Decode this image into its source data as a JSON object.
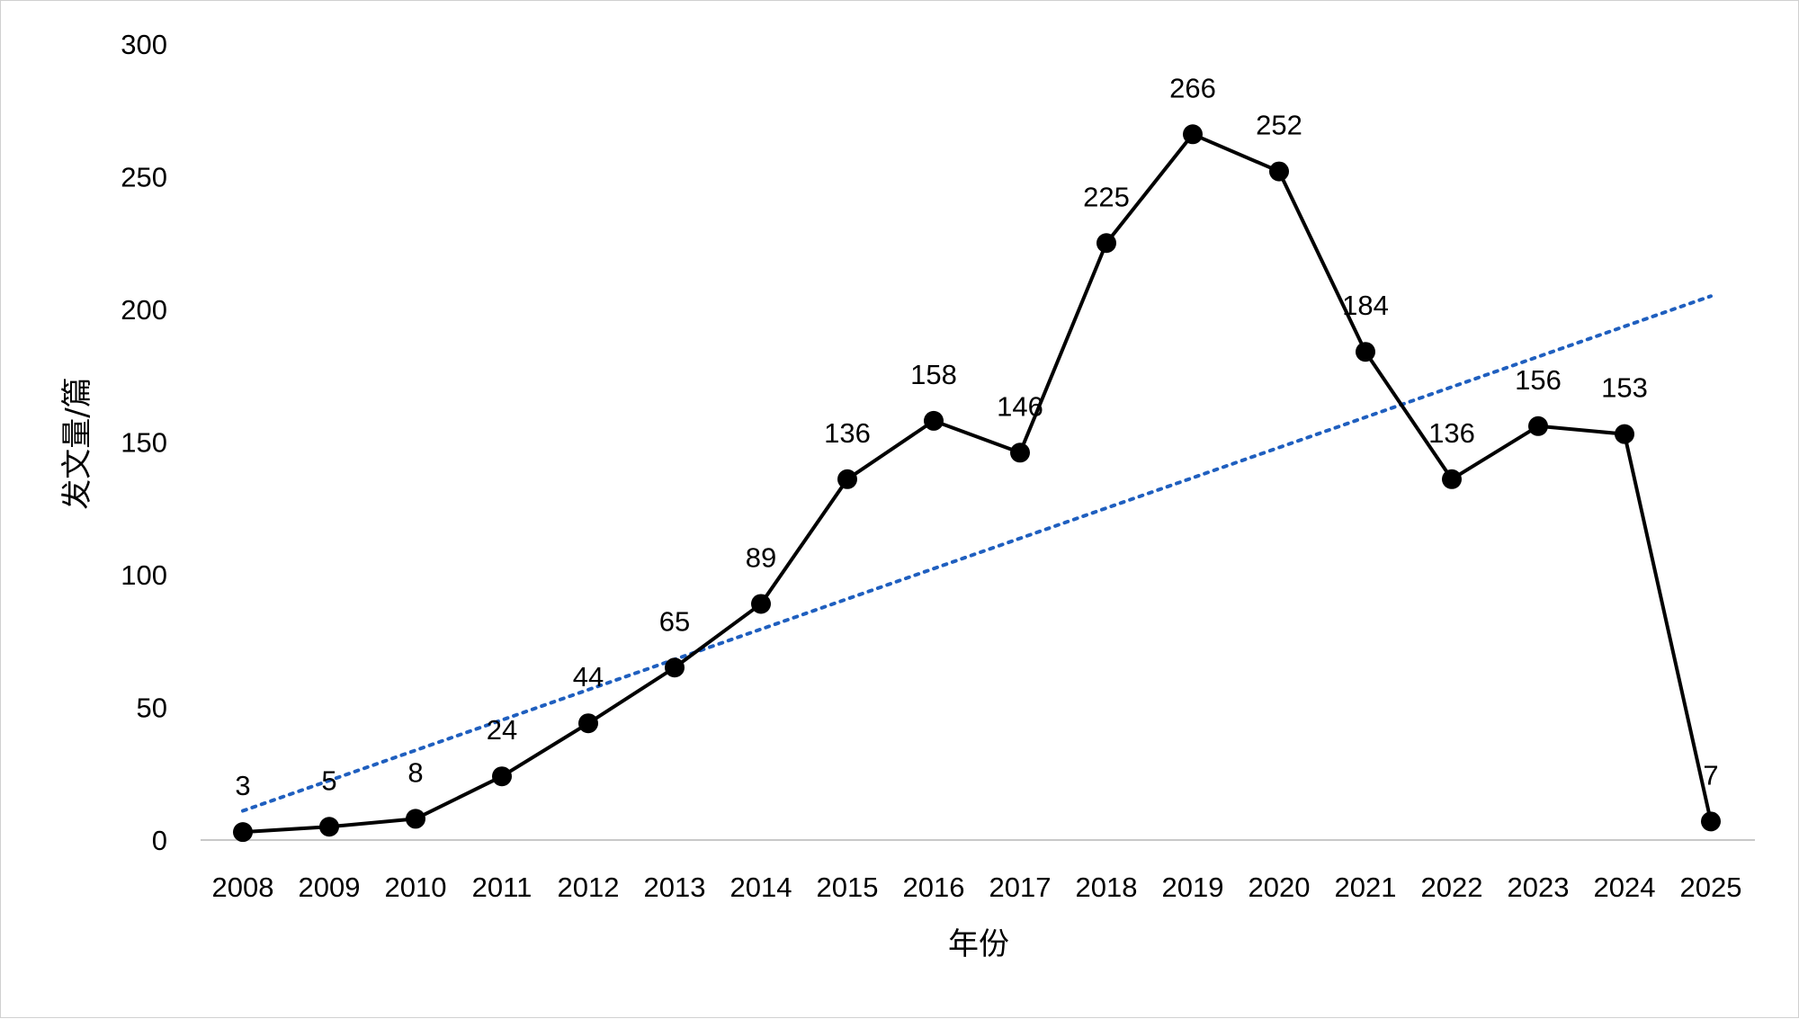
{
  "chart_data": {
    "type": "line",
    "xlabel": "年份",
    "ylabel": "发文量/篇",
    "ylim": [
      0,
      300
    ],
    "yticks": [
      "0",
      "50",
      "100",
      "150",
      "200",
      "250",
      "300"
    ],
    "categories": [
      "2008",
      "2009",
      "2010",
      "2011",
      "2012",
      "2013",
      "2014",
      "2015",
      "2016",
      "2017",
      "2018",
      "2019",
      "2020",
      "2021",
      "2022",
      "2023",
      "2024",
      "2025"
    ],
    "series": [
      {
        "values": [
          3,
          5,
          8,
          24,
          44,
          65,
          89,
          136,
          158,
          146,
          225,
          266,
          252,
          184,
          136,
          156,
          153,
          7
        ],
        "color": "#000000",
        "marker": "circle",
        "data_labels": true
      }
    ],
    "trendline": {
      "type": "linear",
      "style": "dotted",
      "color": "#1f5fbf",
      "start_value": 11,
      "end_value": 205
    },
    "grid": false,
    "legend": "none"
  }
}
